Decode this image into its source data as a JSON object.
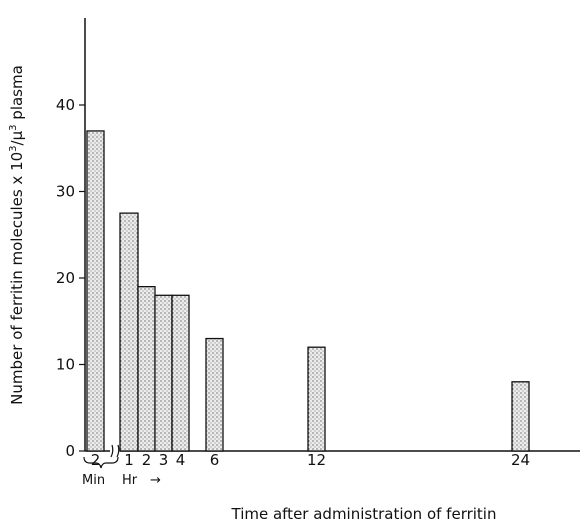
{
  "chart_data": {
    "type": "bar",
    "title": "",
    "xlabel": "Time after administration of ferritin",
    "ylabel": {
      "prefix": "Number of ferritin molecules x 10",
      "sup1": "3",
      "slash": "/",
      "mu": "μ",
      "sup2": "3",
      "suffix": " plasma"
    },
    "ylim": [
      0,
      50
    ],
    "yticks": [
      "0",
      "10",
      "20",
      "30",
      "40"
    ],
    "units": {
      "min": "Min",
      "hr": "Hr",
      "arrow": "→"
    },
    "categories": [
      {
        "label": "2",
        "unit": "min",
        "value": 37
      },
      {
        "label": "1",
        "unit": "hr",
        "value": 27.5
      },
      {
        "label": "2",
        "unit": "hr",
        "value": 19
      },
      {
        "label": "3",
        "unit": "hr",
        "value": 18
      },
      {
        "label": "4",
        "unit": "hr",
        "value": 18
      },
      {
        "label": "6",
        "unit": "hr",
        "value": 13
      },
      {
        "label": "12",
        "unit": "hr",
        "value": 12
      },
      {
        "label": "24",
        "unit": "hr",
        "value": 8
      }
    ],
    "colors": {
      "bar_fill": "#e6e6e6",
      "bar_stroke": "#111111",
      "dots": "#333333"
    }
  }
}
